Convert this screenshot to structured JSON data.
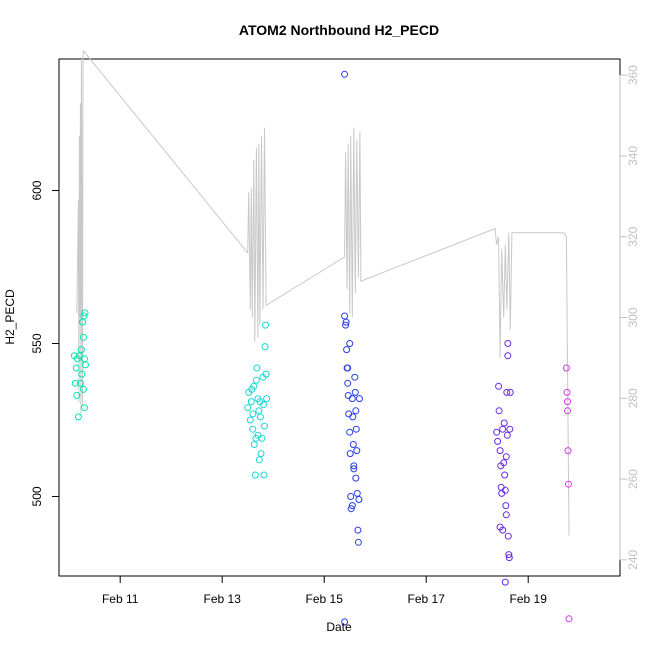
{
  "chart_data": {
    "type": "scatter",
    "title": "ATOM2 Northbound H2_PECD",
    "xlabel": "Date",
    "ylabel": "H2_PECD",
    "x_ticks": [
      "Feb 11",
      "Feb 13",
      "Feb 15",
      "Feb 17",
      "Feb 19"
    ],
    "y_ticks": [
      "500",
      "550",
      "600"
    ],
    "y2_ticks": [
      "240",
      "260",
      "280",
      "300",
      "320",
      "340",
      "360"
    ],
    "xlim": [
      9.8,
      20.8
    ],
    "ylim": [
      474,
      643
    ],
    "y2lim": [
      236,
      364
    ],
    "grid": false,
    "colors": {
      "line": "#c8c8c8",
      "axis": "#000000",
      "right_axis": "#c0c0c0"
    },
    "series": [
      {
        "values": [
          {
            "x": 10.1,
            "y": 546,
            "color": "#00e6b0"
          },
          {
            "x": 10.12,
            "y": 537,
            "color": "#00e6b0"
          },
          {
            "x": 10.14,
            "y": 542,
            "color": "#00e6b0"
          },
          {
            "x": 10.15,
            "y": 533,
            "color": "#00e6b0"
          },
          {
            "x": 10.16,
            "y": 545,
            "color": "#00e6b0"
          },
          {
            "x": 10.18,
            "y": 526,
            "color": "#00e6b0"
          },
          {
            "x": 10.2,
            "y": 546,
            "color": "#00e6b0"
          },
          {
            "x": 10.22,
            "y": 537,
            "color": "#00e6b0"
          },
          {
            "x": 10.24,
            "y": 548,
            "color": "#00e6b0"
          },
          {
            "x": 10.25,
            "y": 540,
            "color": "#00e6b0"
          },
          {
            "x": 10.26,
            "y": 557,
            "color": "#00e6b0"
          },
          {
            "x": 10.28,
            "y": 552,
            "color": "#00e6b0"
          },
          {
            "x": 10.29,
            "y": 559,
            "color": "#00e6b0"
          },
          {
            "x": 10.3,
            "y": 545,
            "color": "#00e6b0"
          },
          {
            "x": 10.31,
            "y": 560,
            "color": "#00e6b0"
          },
          {
            "x": 10.3,
            "y": 529,
            "color": "#00e6b0"
          },
          {
            "x": 10.32,
            "y": 543,
            "color": "#00e6b0"
          },
          {
            "x": 10.28,
            "y": 535,
            "color": "#00e6b0"
          },
          {
            "x": 13.5,
            "y": 529,
            "color": "#1ad6d6"
          },
          {
            "x": 13.52,
            "y": 534,
            "color": "#1ad6d6"
          },
          {
            "x": 13.55,
            "y": 525,
            "color": "#1ad6d6"
          },
          {
            "x": 13.57,
            "y": 531,
            "color": "#1ad6d6"
          },
          {
            "x": 13.6,
            "y": 527,
            "color": "#1ad6d6"
          },
          {
            "x": 13.62,
            "y": 536,
            "color": "#1ad6d6"
          },
          {
            "x": 13.6,
            "y": 522,
            "color": "#1ad6d6"
          },
          {
            "x": 13.63,
            "y": 517,
            "color": "#1ad6d6"
          },
          {
            "x": 13.65,
            "y": 507,
            "color": "#1ad6d6"
          },
          {
            "x": 13.67,
            "y": 538,
            "color": "#1ad6d6"
          },
          {
            "x": 13.68,
            "y": 542,
            "color": "#1ad6d6"
          },
          {
            "x": 13.7,
            "y": 532,
            "color": "#1ad6d6"
          },
          {
            "x": 13.7,
            "y": 520,
            "color": "#1ad6d6"
          },
          {
            "x": 13.72,
            "y": 528,
            "color": "#1ad6d6"
          },
          {
            "x": 13.73,
            "y": 512,
            "color": "#1ad6d6"
          },
          {
            "x": 13.74,
            "y": 531,
            "color": "#1ad6d6"
          },
          {
            "x": 13.75,
            "y": 526,
            "color": "#1ad6d6"
          },
          {
            "x": 13.76,
            "y": 514,
            "color": "#1ad6d6"
          },
          {
            "x": 13.78,
            "y": 519,
            "color": "#1ad6d6"
          },
          {
            "x": 13.8,
            "y": 539,
            "color": "#1ad6d6"
          },
          {
            "x": 13.81,
            "y": 530,
            "color": "#1ad6d6"
          },
          {
            "x": 13.82,
            "y": 507,
            "color": "#1ad6d6"
          },
          {
            "x": 13.83,
            "y": 523,
            "color": "#1ad6d6"
          },
          {
            "x": 13.84,
            "y": 549,
            "color": "#1ad6d6"
          },
          {
            "x": 13.85,
            "y": 556,
            "color": "#1ad6d6"
          },
          {
            "x": 13.86,
            "y": 540,
            "color": "#1ad6d6"
          },
          {
            "x": 13.87,
            "y": 532,
            "color": "#1ad6d6"
          },
          {
            "x": 13.58,
            "y": 535,
            "color": "#1ad6d6"
          },
          {
            "x": 13.66,
            "y": 519,
            "color": "#1ad6d6"
          },
          {
            "x": 15.4,
            "y": 638,
            "color": "#2a3ee6"
          },
          {
            "x": 15.4,
            "y": 559,
            "color": "#2a3ee6"
          },
          {
            "x": 15.42,
            "y": 556,
            "color": "#2a3ee6"
          },
          {
            "x": 15.44,
            "y": 548,
            "color": "#2a3ee6"
          },
          {
            "x": 15.45,
            "y": 542,
            "color": "#2a3ee6"
          },
          {
            "x": 15.46,
            "y": 537,
            "color": "#2a3ee6"
          },
          {
            "x": 15.47,
            "y": 533,
            "color": "#2a3ee6"
          },
          {
            "x": 15.48,
            "y": 527,
            "color": "#2a3ee6"
          },
          {
            "x": 15.5,
            "y": 550,
            "color": "#2a3ee6"
          },
          {
            "x": 15.5,
            "y": 521,
            "color": "#2a3ee6"
          },
          {
            "x": 15.51,
            "y": 514,
            "color": "#2a3ee6"
          },
          {
            "x": 15.52,
            "y": 500,
            "color": "#2a3ee6"
          },
          {
            "x": 15.53,
            "y": 496,
            "color": "#2a3ee6"
          },
          {
            "x": 15.55,
            "y": 532,
            "color": "#2a3ee6"
          },
          {
            "x": 15.56,
            "y": 526,
            "color": "#2a3ee6"
          },
          {
            "x": 15.57,
            "y": 517,
            "color": "#2a3ee6"
          },
          {
            "x": 15.58,
            "y": 509,
            "color": "#2a3ee6"
          },
          {
            "x": 15.6,
            "y": 539,
            "color": "#2a3ee6"
          },
          {
            "x": 15.61,
            "y": 534,
            "color": "#2a3ee6"
          },
          {
            "x": 15.62,
            "y": 528,
            "color": "#2a3ee6"
          },
          {
            "x": 15.63,
            "y": 522,
            "color": "#2a3ee6"
          },
          {
            "x": 15.64,
            "y": 515,
            "color": "#2a3ee6"
          },
          {
            "x": 15.65,
            "y": 501,
            "color": "#2a3ee6"
          },
          {
            "x": 15.66,
            "y": 489,
            "color": "#2a3ee6"
          },
          {
            "x": 15.67,
            "y": 485,
            "color": "#2a3ee6"
          },
          {
            "x": 15.68,
            "y": 499,
            "color": "#2a3ee6"
          },
          {
            "x": 15.69,
            "y": 532,
            "color": "#2a3ee6"
          },
          {
            "x": 15.43,
            "y": 557,
            "color": "#2a3ee6"
          },
          {
            "x": 15.46,
            "y": 542,
            "color": "#2a3ee6"
          },
          {
            "x": 15.58,
            "y": 510,
            "color": "#2a3ee6"
          },
          {
            "x": 15.62,
            "y": 506,
            "color": "#2a3ee6"
          },
          {
            "x": 15.4,
            "y": 459,
            "color": "#2a3ee6"
          },
          {
            "x": 15.55,
            "y": 497,
            "color": "#2a3ee6"
          },
          {
            "x": 18.38,
            "y": 521,
            "color": "#6a2ae6"
          },
          {
            "x": 18.4,
            "y": 518,
            "color": "#6a2ae6"
          },
          {
            "x": 18.42,
            "y": 536,
            "color": "#6a2ae6"
          },
          {
            "x": 18.43,
            "y": 528,
            "color": "#6a2ae6"
          },
          {
            "x": 18.45,
            "y": 515,
            "color": "#6a2ae6"
          },
          {
            "x": 18.46,
            "y": 510,
            "color": "#6a2ae6"
          },
          {
            "x": 18.47,
            "y": 503,
            "color": "#6a2ae6"
          },
          {
            "x": 18.48,
            "y": 501,
            "color": "#6a2ae6"
          },
          {
            "x": 18.5,
            "y": 522,
            "color": "#6a2ae6"
          },
          {
            "x": 18.52,
            "y": 511,
            "color": "#6a2ae6"
          },
          {
            "x": 18.54,
            "y": 507,
            "color": "#6a2ae6"
          },
          {
            "x": 18.55,
            "y": 502,
            "color": "#6a2ae6"
          },
          {
            "x": 18.56,
            "y": 497,
            "color": "#6a2ae6"
          },
          {
            "x": 18.57,
            "y": 494,
            "color": "#6a2ae6"
          },
          {
            "x": 18.58,
            "y": 534,
            "color": "#6a2ae6"
          },
          {
            "x": 18.59,
            "y": 520,
            "color": "#6a2ae6"
          },
          {
            "x": 18.6,
            "y": 546,
            "color": "#6a2ae6"
          },
          {
            "x": 18.6,
            "y": 550,
            "color": "#6a2ae6"
          },
          {
            "x": 18.61,
            "y": 487,
            "color": "#6a2ae6"
          },
          {
            "x": 18.62,
            "y": 481,
            "color": "#6a2ae6"
          },
          {
            "x": 18.63,
            "y": 480,
            "color": "#6a2ae6"
          },
          {
            "x": 18.64,
            "y": 522,
            "color": "#6a2ae6"
          },
          {
            "x": 18.65,
            "y": 534,
            "color": "#6a2ae6"
          },
          {
            "x": 18.55,
            "y": 472,
            "color": "#6a2ae6"
          },
          {
            "x": 18.45,
            "y": 490,
            "color": "#6a2ae6"
          },
          {
            "x": 18.5,
            "y": 489,
            "color": "#6a2ae6"
          },
          {
            "x": 18.53,
            "y": 524,
            "color": "#6a2ae6"
          },
          {
            "x": 18.57,
            "y": 513,
            "color": "#6a2ae6"
          },
          {
            "x": 19.75,
            "y": 542,
            "color": "#d63ae6"
          },
          {
            "x": 19.76,
            "y": 534,
            "color": "#d63ae6"
          },
          {
            "x": 19.77,
            "y": 531,
            "color": "#d63ae6"
          },
          {
            "x": 19.77,
            "y": 528,
            "color": "#d63ae6"
          },
          {
            "x": 19.78,
            "y": 515,
            "color": "#d63ae6"
          },
          {
            "x": 19.79,
            "y": 504,
            "color": "#d63ae6"
          },
          {
            "x": 19.8,
            "y": 460,
            "color": "#d63ae6"
          }
        ]
      },
      {
        "axis": "right",
        "values": [
          {
            "x": 10.15,
            "y": 301
          },
          {
            "x": 10.18,
            "y": 329
          },
          {
            "x": 10.19,
            "y": 279
          },
          {
            "x": 10.2,
            "y": 345
          },
          {
            "x": 10.21,
            "y": 300
          },
          {
            "x": 10.22,
            "y": 353
          },
          {
            "x": 10.23,
            "y": 276
          },
          {
            "x": 10.24,
            "y": 364
          },
          {
            "x": 10.26,
            "y": 278
          },
          {
            "x": 10.27,
            "y": 365
          },
          {
            "x": 10.28,
            "y": 366
          },
          {
            "x": 13.5,
            "y": 316
          },
          {
            "x": 13.52,
            "y": 331
          },
          {
            "x": 13.55,
            "y": 302
          },
          {
            "x": 13.57,
            "y": 332
          },
          {
            "x": 13.59,
            "y": 300
          },
          {
            "x": 13.62,
            "y": 339
          },
          {
            "x": 13.64,
            "y": 294
          },
          {
            "x": 13.67,
            "y": 342
          },
          {
            "x": 13.7,
            "y": 295
          },
          {
            "x": 13.72,
            "y": 343
          },
          {
            "x": 13.74,
            "y": 298
          },
          {
            "x": 13.77,
            "y": 345
          },
          {
            "x": 13.8,
            "y": 302
          },
          {
            "x": 13.83,
            "y": 347
          },
          {
            "x": 13.86,
            "y": 303
          },
          {
            "x": 15.4,
            "y": 315
          },
          {
            "x": 15.42,
            "y": 341
          },
          {
            "x": 15.45,
            "y": 307
          },
          {
            "x": 15.47,
            "y": 343
          },
          {
            "x": 15.5,
            "y": 301
          },
          {
            "x": 15.52,
            "y": 345
          },
          {
            "x": 15.55,
            "y": 300
          },
          {
            "x": 15.58,
            "y": 347
          },
          {
            "x": 15.61,
            "y": 306
          },
          {
            "x": 15.64,
            "y": 344
          },
          {
            "x": 15.67,
            "y": 310
          },
          {
            "x": 15.7,
            "y": 346
          },
          {
            "x": 15.72,
            "y": 309
          },
          {
            "x": 18.35,
            "y": 322
          },
          {
            "x": 18.38,
            "y": 318
          },
          {
            "x": 18.42,
            "y": 320
          },
          {
            "x": 18.45,
            "y": 290
          },
          {
            "x": 18.48,
            "y": 317
          },
          {
            "x": 18.52,
            "y": 300
          },
          {
            "x": 18.55,
            "y": 318
          },
          {
            "x": 18.58,
            "y": 302
          },
          {
            "x": 18.62,
            "y": 321
          },
          {
            "x": 18.65,
            "y": 297
          },
          {
            "x": 18.68,
            "y": 321
          },
          {
            "x": 19.7,
            "y": 321
          },
          {
            "x": 19.75,
            "y": 320
          },
          {
            "x": 19.8,
            "y": 246
          }
        ]
      }
    ]
  }
}
